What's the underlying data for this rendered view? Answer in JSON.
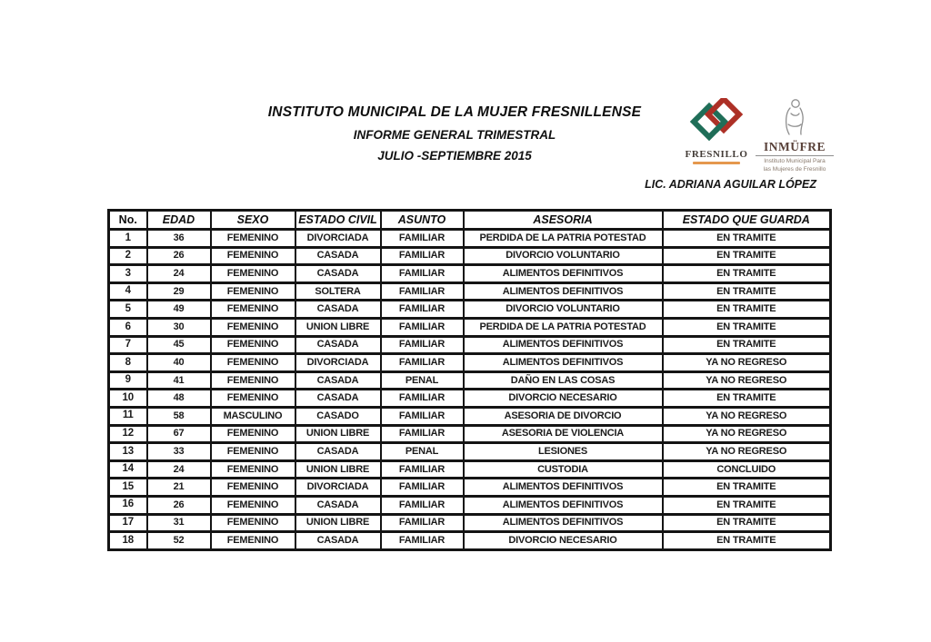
{
  "document": {
    "title_line1": "INSTITUTO MUNICIPAL DE LA MUJER FRESNILLENSE",
    "title_line2": "INFORME GENERAL TRIMESTRAL",
    "title_line3": "JULIO -SEPTIEMBRE 2015",
    "author": "LIC. ADRIANA AGUILAR LÓPEZ"
  },
  "logos": {
    "fresnillo": {
      "name": "FRESNILLO",
      "emblem_green": "#1f6e58",
      "emblem_red": "#ad3026"
    },
    "inmufre": {
      "name": "INMÜFRE",
      "tagline_line1": "Instituto Municipal Para",
      "tagline_line2": "las Mujeres de Fresnillo"
    }
  },
  "table": {
    "columns": [
      "No.",
      "EDAD",
      "SEXO",
      "ESTADO CIVIL",
      "ASUNTO",
      "ASESORIA",
      "ESTADO QUE GUARDA"
    ],
    "rows": [
      [
        "1",
        "36",
        "FEMENINO",
        "DIVORCIADA",
        "FAMILIAR",
        "PERDIDA DE LA PATRIA POTESTAD",
        "EN TRAMITE"
      ],
      [
        "2",
        "26",
        "FEMENINO",
        "CASADA",
        "FAMILIAR",
        "DIVORCIO VOLUNTARIO",
        "EN TRAMITE"
      ],
      [
        "3",
        "24",
        "FEMENINO",
        "CASADA",
        "FAMILIAR",
        "ALIMENTOS DEFINITIVOS",
        "EN TRAMITE"
      ],
      [
        "4",
        "29",
        "FEMENINO",
        "SOLTERA",
        "FAMILIAR",
        "ALIMENTOS DEFINITIVOS",
        "EN TRAMITE"
      ],
      [
        "5",
        "49",
        "FEMENINO",
        "CASADA",
        "FAMILIAR",
        "DIVORCIO VOLUNTARIO",
        "EN TRAMITE"
      ],
      [
        "6",
        "30",
        "FEMENINO",
        "UNION LIBRE",
        "FAMILIAR",
        "PERDIDA DE LA PATRIA POTESTAD",
        "EN TRAMITE"
      ],
      [
        "7",
        "45",
        "FEMENINO",
        "CASADA",
        "FAMILIAR",
        "ALIMENTOS DEFINITIVOS",
        "EN TRAMITE"
      ],
      [
        "8",
        "40",
        "FEMENINO",
        "DIVORCIADA",
        "FAMILIAR",
        "ALIMENTOS DEFINITIVOS",
        "YA NO REGRESO"
      ],
      [
        "9",
        "41",
        "FEMENINO",
        "CASADA",
        "PENAL",
        "DAÑO EN LAS COSAS",
        "YA NO REGRESO"
      ],
      [
        "10",
        "48",
        "FEMENINO",
        "CASADA",
        "FAMILIAR",
        "DIVORCIO NECESARIO",
        "EN TRAMITE"
      ],
      [
        "11",
        "58",
        "MASCULINO",
        "CASADO",
        "FAMILIAR",
        "ASESORIA DE DIVORCIO",
        "YA NO REGRESO"
      ],
      [
        "12",
        "67",
        "FEMENINO",
        "UNION LIBRE",
        "FAMILIAR",
        "ASESORIA DE VIOLENCIA",
        "YA NO REGRESO"
      ],
      [
        "13",
        "33",
        "FEMENINO",
        "CASADA",
        "PENAL",
        "LESIONES",
        "YA NO REGRESO"
      ],
      [
        "14",
        "24",
        "FEMENINO",
        "UNION LIBRE",
        "FAMILIAR",
        "CUSTODIA",
        "CONCLUIDO"
      ],
      [
        "15",
        "21",
        "FEMENINO",
        "DIVORCIADA",
        "FAMILIAR",
        "ALIMENTOS DEFINITIVOS",
        "EN TRAMITE"
      ],
      [
        "16",
        "26",
        "FEMENINO",
        "CASADA",
        "FAMILIAR",
        "ALIMENTOS DEFINITIVOS",
        "EN TRAMITE"
      ],
      [
        "17",
        "31",
        "FEMENINO",
        "UNION LIBRE",
        "FAMILIAR",
        "ALIMENTOS DEFINITIVOS",
        "EN TRAMITE"
      ],
      [
        "18",
        "52",
        "FEMENINO",
        "CASADA",
        "FAMILIAR",
        "DIVORCIO NECESARIO",
        "EN TRAMITE"
      ]
    ]
  }
}
